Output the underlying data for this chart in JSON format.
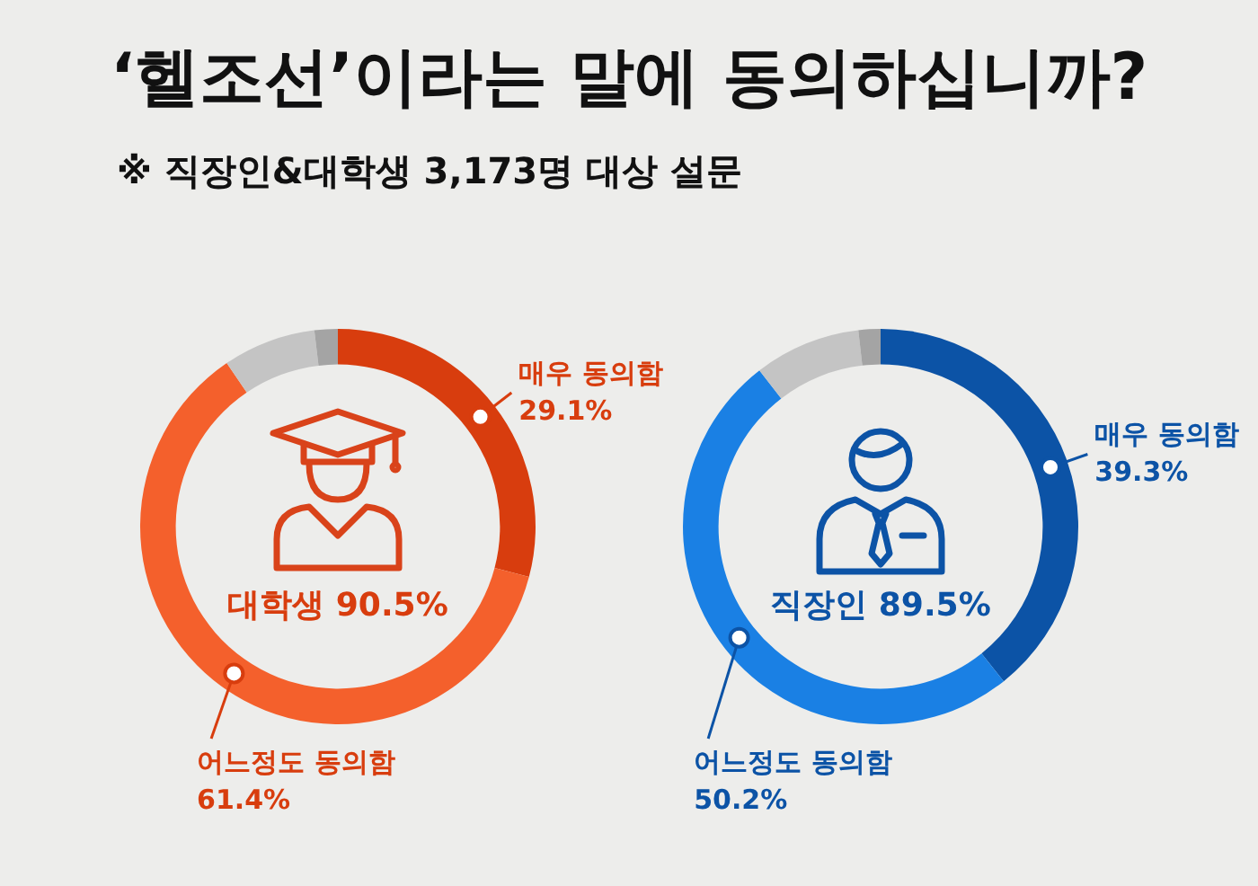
{
  "chart_data": [
    {
      "type": "donut",
      "title": "‘헬조선’이라는 말에 동의하십니까?",
      "subtitle": "※ 직장인&대학생 3,173명 대상 설문",
      "categories": [
        "매우 동의함",
        "어느정도 동의함",
        null,
        null
      ],
      "values": [
        29.1,
        61.4,
        7.6,
        1.9
      ],
      "colors": [
        "#d83d0e",
        "#f4602c",
        "#c4c4c4",
        "#a4a4a4"
      ],
      "value_labels": [
        "29.1%",
        "61.4%",
        null,
        null
      ],
      "annotations": [
        "대학생 90.5%"
      ]
    },
    {
      "type": "donut",
      "categories": [
        "매우 동의함",
        "어느정도 동의함",
        null,
        null
      ],
      "values": [
        39.3,
        50.2,
        8.7,
        1.8
      ],
      "colors": [
        "#0c53a6",
        "#1a80e4",
        "#c4c4c4",
        "#a4a4a4"
      ],
      "value_labels": [
        "39.3%",
        "50.2%",
        null,
        null
      ],
      "annotations": [
        "직장인 89.5%"
      ]
    }
  ]
}
